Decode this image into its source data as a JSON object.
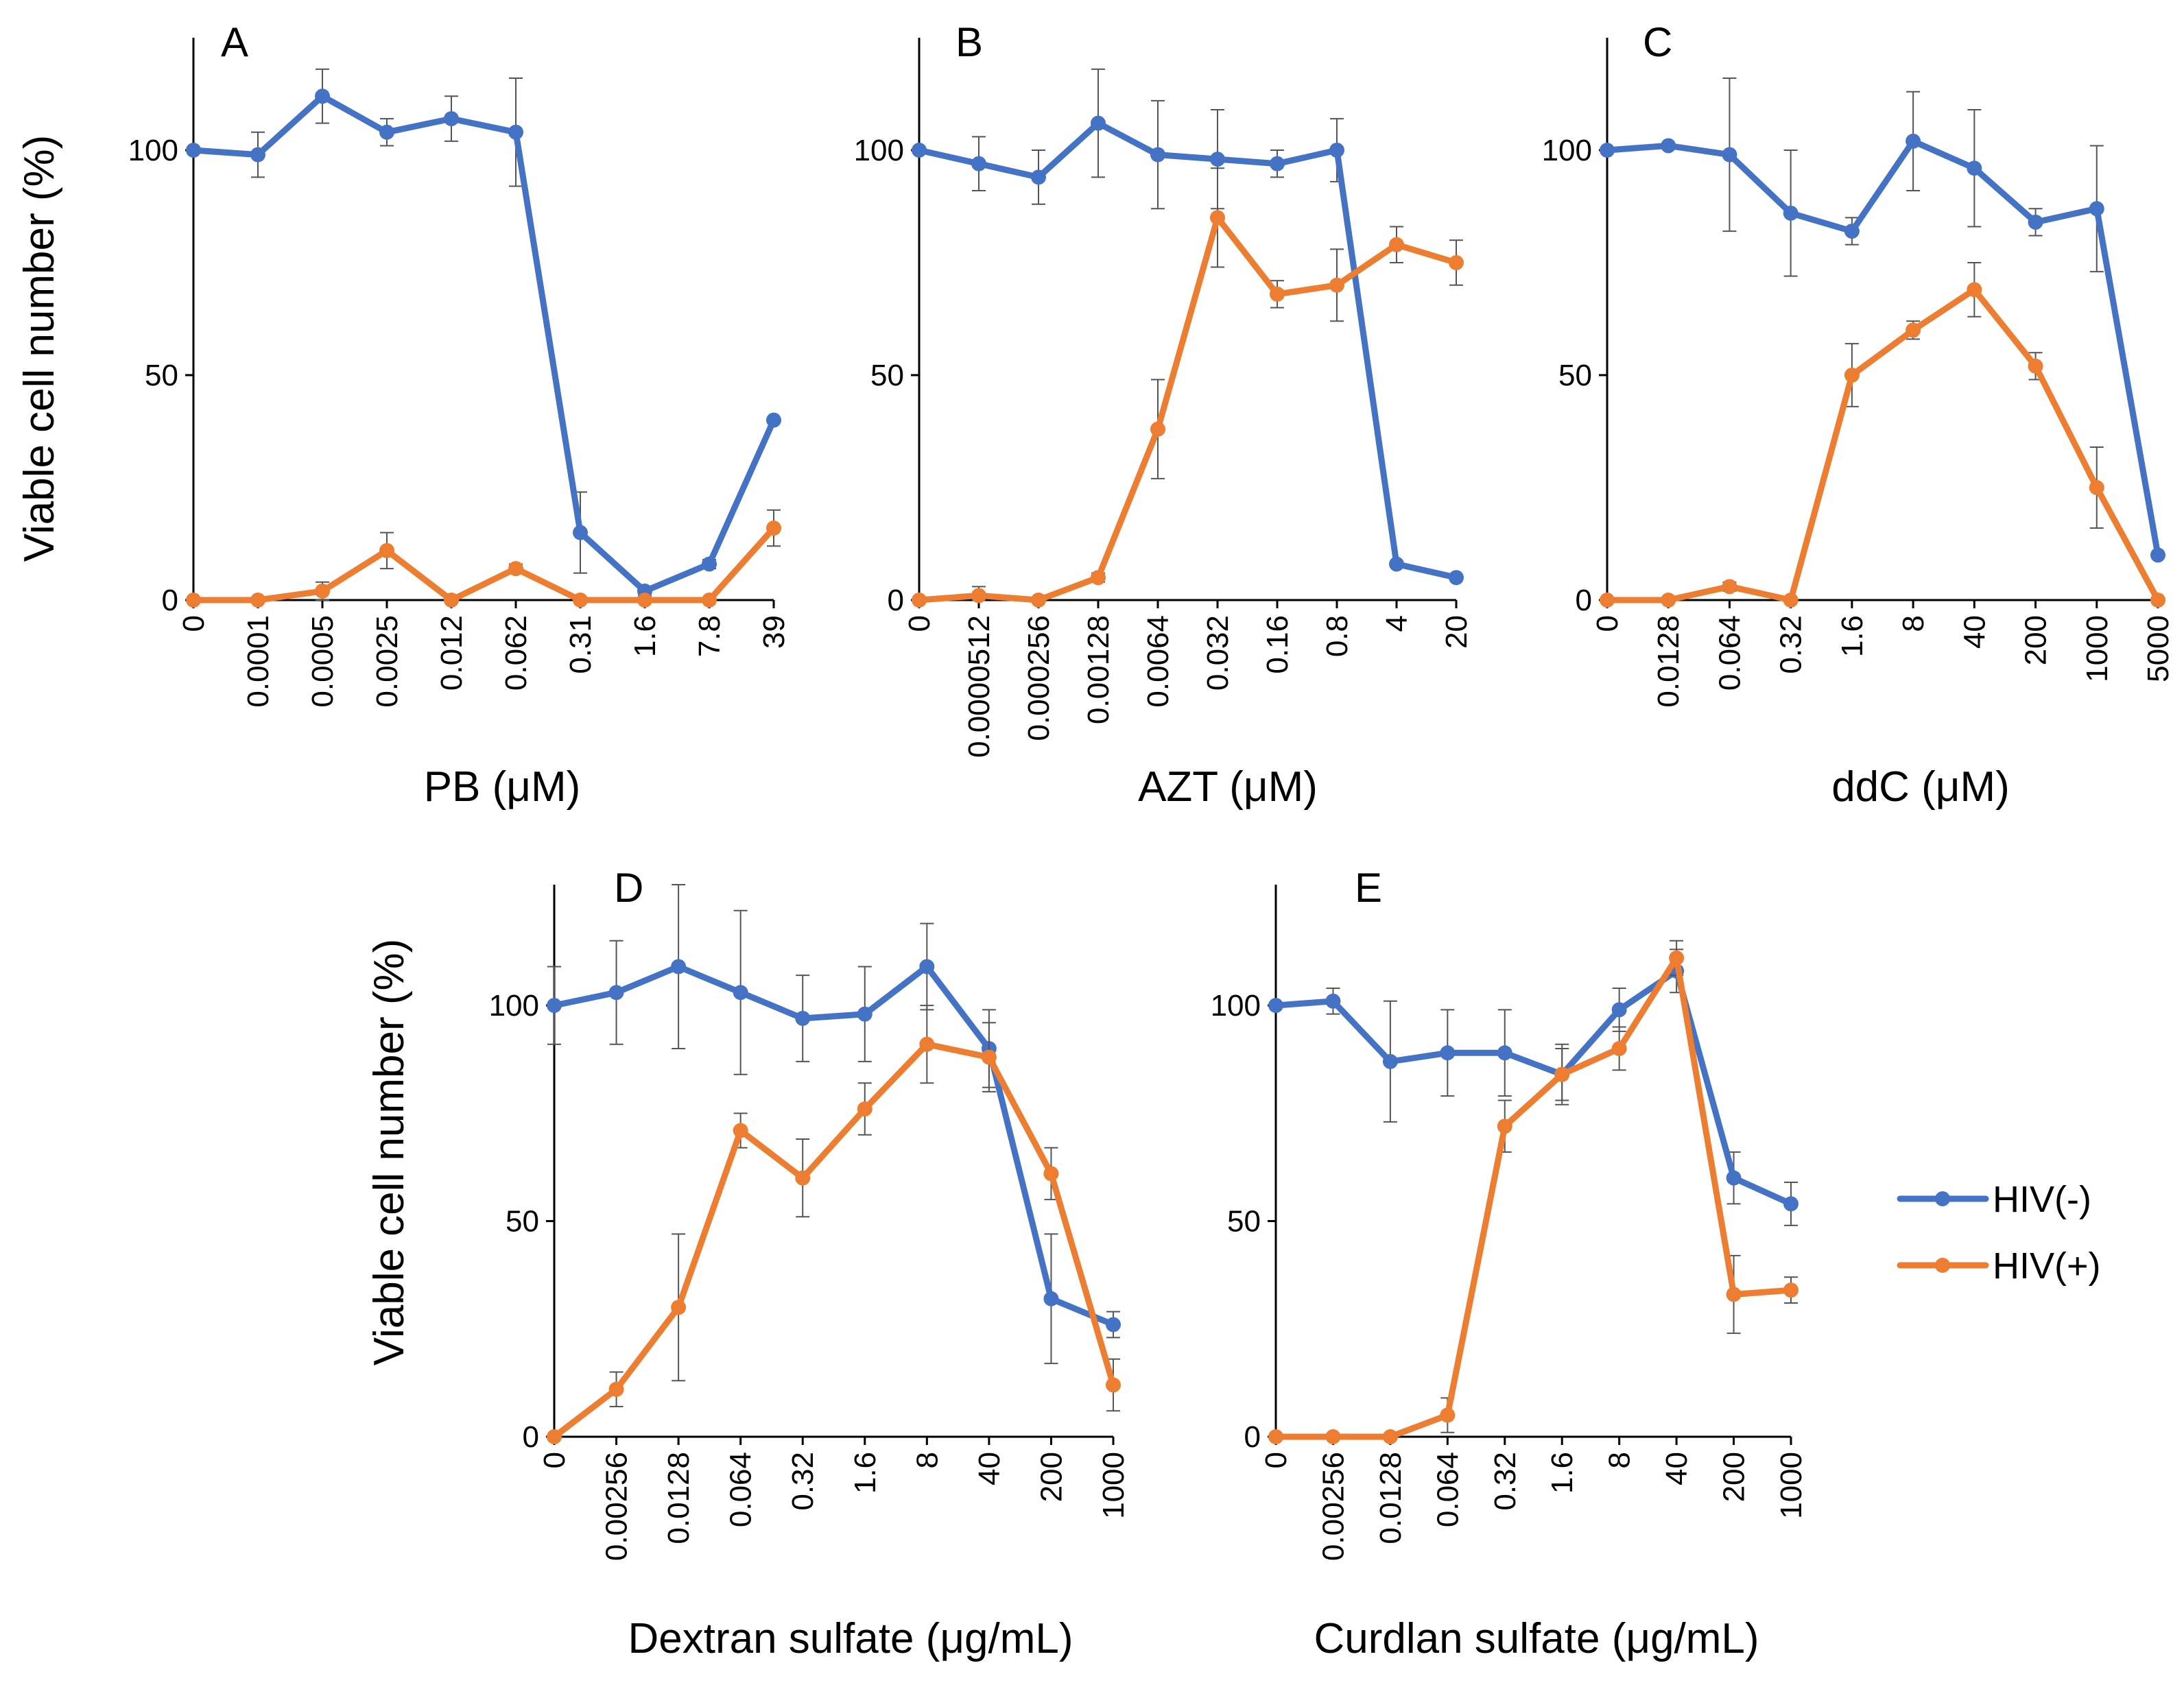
{
  "figure": {
    "y_axis_title": "Viable cell number  (%)",
    "legend": {
      "placement": "right",
      "items": [
        {
          "label": "HIV(-)",
          "color": "#4472C4"
        },
        {
          "label": "HIV(+)",
          "color": "#ED7D31"
        }
      ]
    }
  },
  "chart_data": [
    {
      "panel": "A",
      "type": "line",
      "xlabel": "PB (μM)",
      "ylabel": "Viable cell number  (%)",
      "categories": [
        "0",
        "0.0001",
        "0.0005",
        "0.0025",
        "0.012",
        "0.062",
        "0.31",
        "1.6",
        "7.8",
        "39"
      ],
      "ylim": [
        0,
        125
      ],
      "yticks": [
        0,
        50,
        100
      ],
      "series": [
        {
          "name": "HIV(-)",
          "color": "#4472C4",
          "values": [
            100,
            99,
            112,
            104,
            107,
            104,
            15,
            2,
            8,
            40
          ],
          "errors": [
            0,
            5,
            6,
            3,
            5,
            12,
            9,
            1,
            1,
            0
          ]
        },
        {
          "name": "HIV(+)",
          "color": "#ED7D31",
          "values": [
            0,
            0,
            2,
            11,
            0,
            7,
            0,
            0,
            0,
            16
          ],
          "errors": [
            0,
            0,
            2,
            4,
            0,
            1,
            0,
            0,
            0,
            4
          ]
        }
      ]
    },
    {
      "panel": "B",
      "type": "line",
      "xlabel": "AZT (μM)",
      "ylabel": "",
      "categories": [
        "0",
        "0.0000512",
        "0.000256",
        "0.00128",
        "0.0064",
        "0.032",
        "0.16",
        "0.8",
        "4",
        "20"
      ],
      "ylim": [
        0,
        125
      ],
      "yticks": [
        0,
        50,
        100
      ],
      "series": [
        {
          "name": "HIV(-)",
          "color": "#4472C4",
          "values": [
            100,
            97,
            94,
            106,
            99,
            98,
            97,
            100,
            8,
            5
          ],
          "errors": [
            0,
            6,
            6,
            12,
            12,
            11,
            3,
            7,
            0,
            0
          ]
        },
        {
          "name": "HIV(+)",
          "color": "#ED7D31",
          "values": [
            0,
            1,
            0,
            5,
            38,
            85,
            68,
            70,
            79,
            75
          ],
          "errors": [
            0,
            2,
            0,
            1,
            11,
            11,
            3,
            8,
            4,
            5
          ]
        }
      ]
    },
    {
      "panel": "C",
      "type": "line",
      "xlabel": "ddC (μM)",
      "ylabel": "",
      "categories": [
        "0",
        "0.0128",
        "0.064",
        "0.32",
        "1.6",
        "8",
        "40",
        "200",
        "1000",
        "5000"
      ],
      "ylim": [
        0,
        125
      ],
      "yticks": [
        0,
        50,
        100
      ],
      "series": [
        {
          "name": "HIV(-)",
          "color": "#4472C4",
          "values": [
            100,
            101,
            99,
            86,
            82,
            102,
            96,
            84,
            87,
            10
          ],
          "errors": [
            0,
            0,
            17,
            14,
            3,
            11,
            13,
            3,
            14,
            0
          ]
        },
        {
          "name": "HIV(+)",
          "color": "#ED7D31",
          "values": [
            0,
            0,
            3,
            0,
            50,
            60,
            69,
            52,
            25,
            0
          ],
          "errors": [
            0,
            0,
            1,
            0,
            7,
            2,
            6,
            3,
            9,
            0
          ]
        }
      ]
    },
    {
      "panel": "D",
      "type": "line",
      "xlabel": "Dextran sulfate (μg/mL)",
      "ylabel": "Viable cell number  (%)",
      "categories": [
        "0",
        "0.00256",
        "0.0128",
        "0.064",
        "0.32",
        "1.6",
        "8",
        "40",
        "200",
        "1000"
      ],
      "ylim": [
        0,
        128
      ],
      "yticks": [
        0,
        50,
        100
      ],
      "series": [
        {
          "name": "HIV(-)",
          "color": "#4472C4",
          "values": [
            100,
            103,
            109,
            103,
            97,
            98,
            109,
            90,
            32,
            26
          ],
          "errors": [
            9,
            12,
            19,
            19,
            10,
            11,
            10,
            9,
            15,
            3
          ]
        },
        {
          "name": "HIV(+)",
          "color": "#ED7D31",
          "values": [
            0,
            11,
            30,
            71,
            60,
            76,
            91,
            88,
            61,
            12
          ],
          "errors": [
            0,
            4,
            17,
            4,
            9,
            6,
            9,
            8,
            6,
            6
          ]
        }
      ]
    },
    {
      "panel": "E",
      "type": "line",
      "xlabel": "Curdlan sulfate (μg/mL)",
      "ylabel": "",
      "categories": [
        "0",
        "0.00256",
        "0.0128",
        "0.064",
        "0.32",
        "1.6",
        "8",
        "40",
        "200",
        "1000"
      ],
      "ylim": [
        0,
        128
      ],
      "yticks": [
        0,
        50,
        100
      ],
      "series": [
        {
          "name": "HIV(-)",
          "color": "#4472C4",
          "values": [
            100,
            101,
            87,
            89,
            89,
            84,
            99,
            108,
            60,
            54
          ],
          "errors": [
            0,
            3,
            14,
            10,
            10,
            6,
            5,
            5,
            6,
            5
          ]
        },
        {
          "name": "HIV(+)",
          "color": "#ED7D31",
          "values": [
            0,
            0,
            0,
            5,
            72,
            84,
            90,
            111,
            33,
            34
          ],
          "errors": [
            0,
            0,
            0,
            4,
            6,
            7,
            5,
            4,
            9,
            3
          ]
        }
      ]
    }
  ]
}
